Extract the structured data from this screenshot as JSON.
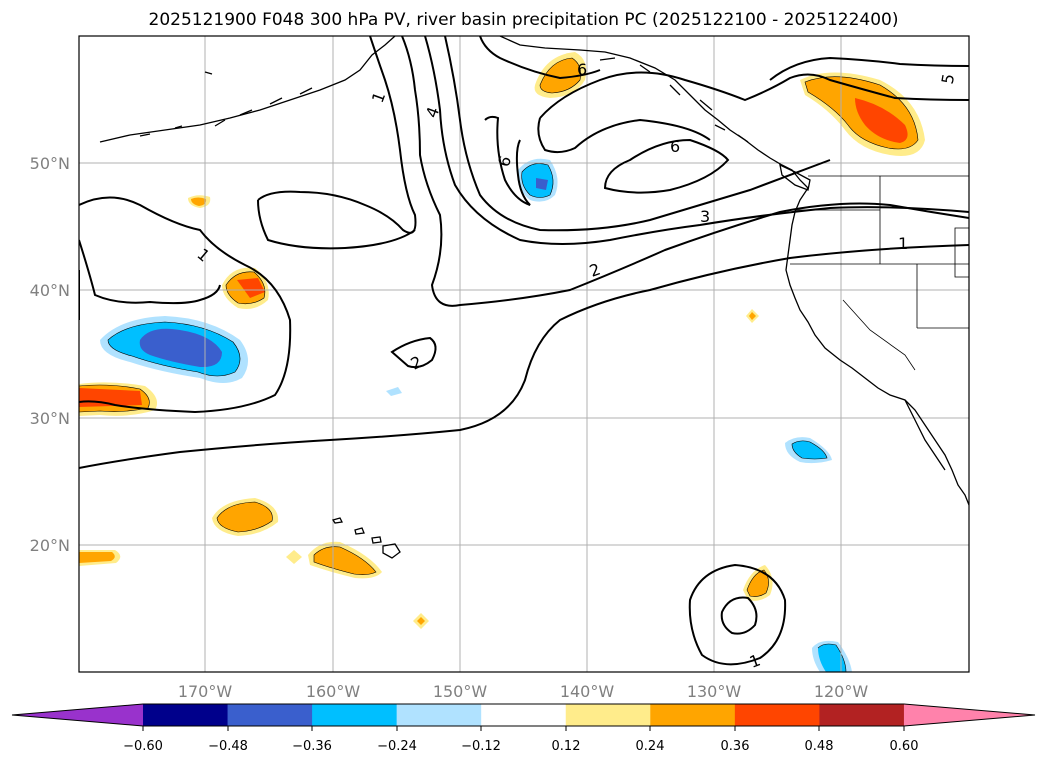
{
  "title": "2025121900 F048 300 hPa PV, river basin precipitation PC (2025122100 - 2025122400)",
  "map": {
    "lat_labels": [
      "50°N",
      "40°N",
      "30°N",
      "20°N"
    ],
    "lon_labels": [
      "170°W",
      "160°W",
      "150°W",
      "140°W",
      "130°W",
      "120°W"
    ],
    "pv_contour_labels": [
      "1",
      "4",
      "6",
      "6",
      "6",
      "5",
      "3",
      "1",
      "1",
      "2",
      "2",
      "1"
    ]
  },
  "colorbar": {
    "tick_labels": [
      "−0.60",
      "−0.48",
      "−0.36",
      "−0.24",
      "−0.12",
      "0.12",
      "0.24",
      "0.36",
      "0.48",
      "0.60"
    ],
    "colors": [
      "#9932cc",
      "#00008b",
      "#3a5fcd",
      "#00bfff",
      "#b0e2ff",
      "#ffffff",
      "#ffec8b",
      "#ffa500",
      "#ff4500",
      "#b22222",
      "#ff82ab"
    ]
  }
}
